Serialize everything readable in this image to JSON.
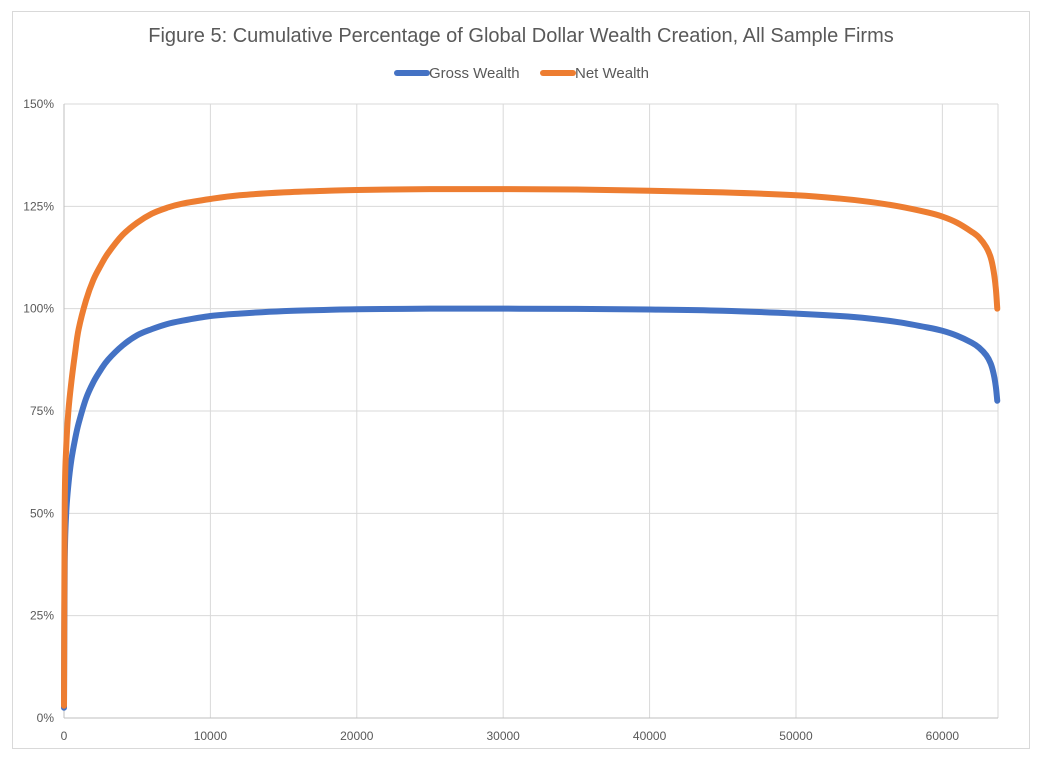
{
  "chart_data": {
    "type": "line",
    "title": "Figure 5: Cumulative Percentage of Global Dollar Wealth Creation, All Sample Firms",
    "xlabel": "",
    "ylabel": "",
    "xlim": [
      0,
      63800
    ],
    "ylim": [
      0,
      150
    ],
    "x_ticks": [
      "0",
      "10000",
      "20000",
      "30000",
      "40000",
      "50000",
      "60000"
    ],
    "y_ticks": [
      "0%",
      "25%",
      "50%",
      "75%",
      "100%",
      "125%",
      "150%"
    ],
    "grid": true,
    "legend_position": "top",
    "series": [
      {
        "name": "Gross Wealth",
        "color": "#4472C4",
        "x": [
          0,
          50,
          150,
          300,
          500,
          750,
          1000,
          1500,
          2000,
          2500,
          3000,
          4000,
          5000,
          6000,
          7000,
          8000,
          10000,
          12000,
          15000,
          18000,
          20000,
          25000,
          30000,
          35000,
          40000,
          45000,
          50000,
          53000,
          55000,
          57000,
          59000,
          60000,
          61000,
          62000,
          62500,
          63000,
          63300,
          63500,
          63650,
          63750
        ],
        "values": [
          2.5,
          38,
          50,
          57,
          63,
          68,
          72,
          78,
          82,
          85,
          87.5,
          91,
          93.5,
          95,
          96.2,
          97,
          98.2,
          98.8,
          99.4,
          99.7,
          99.85,
          100,
          100,
          99.95,
          99.8,
          99.5,
          98.8,
          98.2,
          97.6,
          96.7,
          95.4,
          94.6,
          93.4,
          91.7,
          90.5,
          88.6,
          86.6,
          84.1,
          81,
          77.5
        ]
      },
      {
        "name": "Net Wealth",
        "color": "#ED7D31",
        "x": [
          0,
          50,
          150,
          300,
          500,
          750,
          1000,
          1500,
          2000,
          2500,
          3000,
          4000,
          5000,
          6000,
          7000,
          8000,
          10000,
          12000,
          15000,
          18000,
          20000,
          25000,
          30000,
          35000,
          40000,
          45000,
          50000,
          53000,
          55000,
          57000,
          59000,
          60000,
          61000,
          62000,
          62500,
          63000,
          63300,
          63500,
          63650,
          63750
        ],
        "values": [
          3,
          52,
          66,
          75,
          82,
          89,
          95,
          102,
          107,
          110.5,
          113.5,
          118,
          121,
          123.2,
          124.6,
          125.6,
          126.8,
          127.7,
          128.4,
          128.8,
          129,
          129.2,
          129.2,
          129.1,
          128.8,
          128.4,
          127.7,
          126.9,
          126.1,
          125,
          123.5,
          122.5,
          121,
          118.8,
          117.4,
          115,
          112.5,
          109.2,
          105,
          100
        ]
      }
    ]
  }
}
